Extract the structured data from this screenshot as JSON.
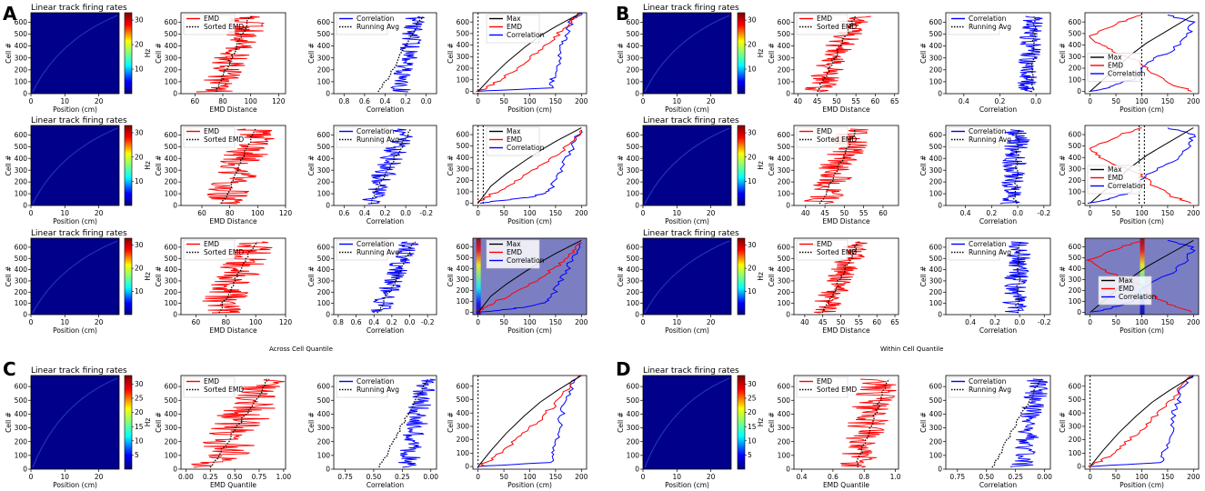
{
  "figure": {
    "panel_labels": [
      "A",
      "B",
      "C",
      "D"
    ],
    "caption_A": "Across Cell Quantile",
    "caption_B": "Within Cell Quantile"
  },
  "common": {
    "heatmap_title": "Linear track firing rates",
    "heatmap_xlabel": "Position (cm)",
    "heatmap_ylabel": "Cell #",
    "heatmap_xticks": [
      "0",
      "10",
      "20"
    ],
    "heatmap_yticks": [
      "0",
      "100",
      "200",
      "300",
      "400",
      "500",
      "600"
    ],
    "colorbar_label": "Hz",
    "colorbar_ticks_short": [
      "10",
      "20",
      "30"
    ],
    "colorbar_ticks_long": [
      "5",
      "10",
      "15",
      "20",
      "25",
      "30"
    ],
    "emd_legend": [
      "EMD",
      "Sorted EMD"
    ],
    "corr_legend": [
      "Correlation",
      "Running Avg"
    ],
    "pos_legend": [
      "Max",
      "EMD",
      "Correlation"
    ],
    "emd_xlabel": "EMD Distance",
    "emd_q_xlabel": "EMD Quantile",
    "corr_xlabel": "Correlation",
    "pos_xlabel": "Position (cm)",
    "pos_xticks": [
      "0",
      "50",
      "100",
      "150",
      "200"
    ],
    "cell_ylabel": "Cell #"
  },
  "colors": {
    "emd": "#ff0000",
    "corr": "#0000ff",
    "max": "#000000",
    "heat_bg": "#00008b",
    "shade": "#7b7fc1"
  },
  "chart_data": [
    {
      "id": "A1-emd",
      "type": "line",
      "xlim": [
        50,
        125
      ],
      "xticks": [
        "60",
        "80",
        "100",
        "120"
      ],
      "center": [
        75,
        100
      ],
      "spread": 14,
      "sorted": [
        75,
        100
      ]
    },
    {
      "id": "A2-emd",
      "type": "line",
      "xlim": [
        45,
        120
      ],
      "xticks": [
        "60",
        "80",
        "100",
        "120"
      ],
      "center": [
        75,
        100
      ],
      "spread": 16,
      "sorted": [
        75,
        98
      ]
    },
    {
      "id": "A3-emd",
      "type": "line",
      "xlim": [
        50,
        120
      ],
      "xticks": [
        "60",
        "80",
        "100",
        "120"
      ],
      "center": [
        75,
        100
      ],
      "spread": 15,
      "sorted": [
        75,
        100
      ]
    },
    {
      "id": "B1-emd",
      "type": "line",
      "xlim": [
        39,
        66
      ],
      "xticks": [
        "40",
        "45",
        "50",
        "55",
        "60",
        "65"
      ],
      "center": [
        45,
        55
      ],
      "spread": 4,
      "sorted": [
        45,
        55
      ]
    },
    {
      "id": "B2-emd",
      "type": "line",
      "xlim": [
        37,
        64
      ],
      "xticks": [
        "40",
        "45",
        "50",
        "55",
        "60"
      ],
      "center": [
        44,
        53
      ],
      "spread": 5,
      "sorted": [
        44,
        53
      ]
    },
    {
      "id": "B3-emd",
      "type": "line",
      "xlim": [
        37,
        66
      ],
      "xticks": [
        "40",
        "45",
        "50",
        "55",
        "60",
        "65"
      ],
      "center": [
        45,
        55
      ],
      "spread": 4,
      "sorted": [
        45,
        55
      ]
    },
    {
      "id": "C-emd",
      "type": "line",
      "xlim": [
        -0.05,
        1.02
      ],
      "xticks": [
        "0.00",
        "0.25",
        "0.50",
        "0.75",
        "1.00"
      ],
      "center": [
        0.3,
        0.8
      ],
      "spread": 0.28,
      "sorted": [
        0.25,
        0.85
      ]
    },
    {
      "id": "D-emd",
      "type": "line",
      "xlim": [
        0.35,
        1.02
      ],
      "xticks": [
        "0.4",
        "0.6",
        "0.8",
        "1.0"
      ],
      "center": [
        0.75,
        0.9
      ],
      "spread": 0.13,
      "sorted": [
        0.75,
        0.95
      ]
    },
    {
      "id": "A1-corr",
      "type": "line",
      "xlim": [
        0.9,
        -0.1
      ],
      "xticks": [
        "0.8",
        "0.6",
        "0.4",
        "0.2",
        "0.0"
      ],
      "center": [
        0.25,
        0.1
      ],
      "spread": 0.1,
      "sorted": [
        0.45,
        0.05
      ]
    },
    {
      "id": "A2-corr",
      "type": "line",
      "xlim": [
        0.7,
        -0.3
      ],
      "xticks": [
        "0.6",
        "0.4",
        "0.2",
        "0.0",
        "-0.2"
      ],
      "center": [
        0.35,
        0.0
      ],
      "spread": 0.12,
      "sorted": [
        0.35,
        -0.05
      ]
    },
    {
      "id": "A3-corr",
      "type": "line",
      "xlim": [
        0.85,
        -0.3
      ],
      "xticks": [
        "0.8",
        "0.6",
        "0.4",
        "0.2",
        "0.0",
        "-0.2"
      ],
      "center": [
        0.35,
        0.0
      ],
      "spread": 0.12,
      "sorted": [
        0.35,
        -0.05
      ]
    },
    {
      "id": "B1-corr",
      "type": "line",
      "xlim": [
        0.5,
        -0.08
      ],
      "xticks": [
        "0.4",
        "0.2",
        "0.0"
      ],
      "center": [
        0.05,
        0.02
      ],
      "spread": 0.06,
      "sorted": [
        0.02,
        0.01
      ]
    },
    {
      "id": "B2-corr",
      "type": "line",
      "xlim": [
        0.55,
        -0.25
      ],
      "xticks": [
        "0.4",
        "0.2",
        "0.0",
        "-0.2"
      ],
      "center": [
        0.05,
        0.0
      ],
      "spread": 0.1,
      "sorted": [
        0.02,
        0.0
      ]
    },
    {
      "id": "B3-corr",
      "type": "line",
      "xlim": [
        0.6,
        -0.25
      ],
      "xticks": [
        "0.4",
        "0.2",
        "0.0",
        "-0.2"
      ],
      "center": [
        0.05,
        0.0
      ],
      "spread": 0.1,
      "sorted": [
        0.02,
        0.0
      ]
    },
    {
      "id": "C-corr",
      "type": "line",
      "xlim": [
        0.85,
        -0.05
      ],
      "xticks": [
        "0.75",
        "0.50",
        "0.25",
        "0.00"
      ],
      "center": [
        0.2,
        0.05
      ],
      "spread": 0.1,
      "sorted": [
        0.45,
        0.03
      ]
    },
    {
      "id": "D-corr",
      "type": "line",
      "xlim": [
        0.85,
        -0.05
      ],
      "xticks": [
        "0.75",
        "0.50",
        "0.25",
        "0.00"
      ],
      "center": [
        0.2,
        0.05
      ],
      "spread": 0.1,
      "sorted": [
        0.45,
        0.03
      ]
    },
    {
      "id": "A1-pos",
      "type": "line",
      "xlim": [
        -10,
        210
      ],
      "ylim": [
        -20,
        680
      ],
      "max_x": [
        0,
        25,
        55,
        90,
        120,
        150,
        175,
        200
      ],
      "max_y": [
        0,
        120,
        250,
        380,
        480,
        560,
        620,
        680
      ],
      "emd_x": [
        0,
        30,
        60,
        90,
        120,
        145,
        170,
        195
      ],
      "emd_y": [
        0,
        60,
        150,
        250,
        350,
        450,
        560,
        680
      ],
      "corr_x": [
        0,
        140,
        145,
        155,
        160,
        170,
        180,
        200
      ],
      "corr_y": [
        0,
        30,
        120,
        240,
        380,
        480,
        600,
        680
      ],
      "vlines": [
        0
      ]
    },
    {
      "id": "A2-pos",
      "type": "line",
      "xlim": [
        -10,
        210
      ],
      "ylim": [
        -20,
        680
      ],
      "max_x": [
        0,
        25,
        55,
        90,
        120,
        150,
        175,
        200
      ],
      "max_y": [
        0,
        150,
        260,
        370,
        460,
        540,
        600,
        660
      ],
      "emd_x": [
        0,
        20,
        60,
        100,
        130,
        160,
        185,
        200
      ],
      "emd_y": [
        0,
        60,
        160,
        260,
        350,
        450,
        550,
        640
      ],
      "corr_x": [
        0,
        60,
        110,
        140,
        155,
        170,
        185,
        200
      ],
      "corr_y": [
        0,
        30,
        60,
        120,
        260,
        380,
        520,
        640
      ],
      "vlines": [
        0,
        10
      ]
    },
    {
      "id": "A3-pos",
      "type": "line",
      "xlim": [
        -10,
        210
      ],
      "ylim": [
        -20,
        680
      ],
      "shade": true,
      "max_x": [
        0,
        25,
        55,
        90,
        120,
        150,
        175,
        200
      ],
      "max_y": [
        0,
        150,
        260,
        370,
        460,
        540,
        600,
        660
      ],
      "emd_x": [
        0,
        20,
        60,
        100,
        130,
        160,
        185,
        200
      ],
      "emd_y": [
        0,
        60,
        160,
        260,
        350,
        450,
        550,
        640
      ],
      "corr_x": [
        0,
        60,
        110,
        140,
        155,
        170,
        185,
        200
      ],
      "corr_y": [
        0,
        30,
        60,
        120,
        260,
        380,
        520,
        640
      ],
      "vlines": [
        0
      ]
    },
    {
      "id": "B1-pos",
      "type": "line",
      "xlim": [
        -10,
        210
      ],
      "ylim": [
        -20,
        680
      ],
      "max_x": [
        0,
        40,
        80,
        110,
        140,
        170,
        200
      ],
      "max_y": [
        0,
        160,
        320,
        420,
        500,
        580,
        660
      ],
      "emd_x": [
        200,
        160,
        120,
        100,
        60,
        20,
        0,
        60,
        100
      ],
      "emd_y": [
        0,
        60,
        160,
        250,
        320,
        400,
        480,
        600,
        660
      ],
      "corr_x": [
        0,
        40,
        80,
        110,
        160,
        190,
        200,
        150
      ],
      "corr_y": [
        0,
        40,
        100,
        250,
        360,
        500,
        600,
        660
      ],
      "vlines": [
        100
      ]
    },
    {
      "id": "B2-pos",
      "type": "line",
      "xlim": [
        -10,
        210
      ],
      "ylim": [
        -20,
        680
      ],
      "max_x": [
        0,
        40,
        80,
        110,
        140,
        170,
        200
      ],
      "max_y": [
        0,
        160,
        320,
        420,
        500,
        580,
        660
      ],
      "emd_x": [
        200,
        160,
        120,
        100,
        60,
        20,
        0,
        60,
        100
      ],
      "emd_y": [
        0,
        60,
        160,
        250,
        320,
        400,
        480,
        600,
        660
      ],
      "corr_x": [
        0,
        40,
        80,
        110,
        160,
        190,
        200,
        150
      ],
      "corr_y": [
        0,
        40,
        100,
        250,
        360,
        500,
        600,
        660
      ],
      "vlines": [
        95,
        105
      ]
    },
    {
      "id": "B3-pos",
      "type": "line",
      "xlim": [
        -10,
        210
      ],
      "ylim": [
        -20,
        680
      ],
      "shade": true,
      "max_x": [
        0,
        40,
        80,
        110,
        140,
        170,
        200
      ],
      "max_y": [
        0,
        160,
        320,
        420,
        500,
        580,
        660
      ],
      "emd_x": [
        200,
        160,
        120,
        100,
        60,
        20,
        0,
        60,
        100
      ],
      "emd_y": [
        0,
        60,
        160,
        250,
        320,
        400,
        480,
        600,
        660
      ],
      "corr_x": [
        0,
        40,
        80,
        110,
        160,
        190,
        200,
        150
      ],
      "corr_y": [
        0,
        40,
        100,
        250,
        360,
        500,
        600,
        660
      ],
      "vlines": [
        100
      ]
    },
    {
      "id": "C-pos",
      "type": "line",
      "xlim": [
        -10,
        210
      ],
      "ylim": [
        -20,
        680
      ],
      "max_x": [
        0,
        25,
        55,
        90,
        120,
        150,
        175,
        200
      ],
      "max_y": [
        0,
        120,
        250,
        380,
        480,
        560,
        620,
        680
      ],
      "emd_x": [
        0,
        30,
        60,
        90,
        120,
        145,
        170,
        195
      ],
      "emd_y": [
        0,
        60,
        150,
        250,
        350,
        450,
        560,
        680
      ],
      "corr_x": [
        0,
        140,
        145,
        155,
        160,
        170,
        180,
        200
      ],
      "corr_y": [
        0,
        30,
        120,
        240,
        380,
        480,
        600,
        680
      ],
      "vlines": [
        0
      ]
    },
    {
      "id": "D-pos",
      "type": "line",
      "xlim": [
        -10,
        210
      ],
      "ylim": [
        -20,
        680
      ],
      "max_x": [
        0,
        25,
        55,
        90,
        120,
        150,
        175,
        200
      ],
      "max_y": [
        0,
        120,
        250,
        380,
        480,
        560,
        620,
        680
      ],
      "emd_x": [
        0,
        30,
        60,
        90,
        120,
        145,
        170,
        195
      ],
      "emd_y": [
        0,
        60,
        150,
        250,
        350,
        450,
        560,
        680
      ],
      "corr_x": [
        0,
        140,
        145,
        155,
        160,
        170,
        180,
        200
      ],
      "corr_y": [
        0,
        30,
        120,
        240,
        380,
        480,
        600,
        680
      ],
      "vlines": [
        0
      ]
    }
  ]
}
